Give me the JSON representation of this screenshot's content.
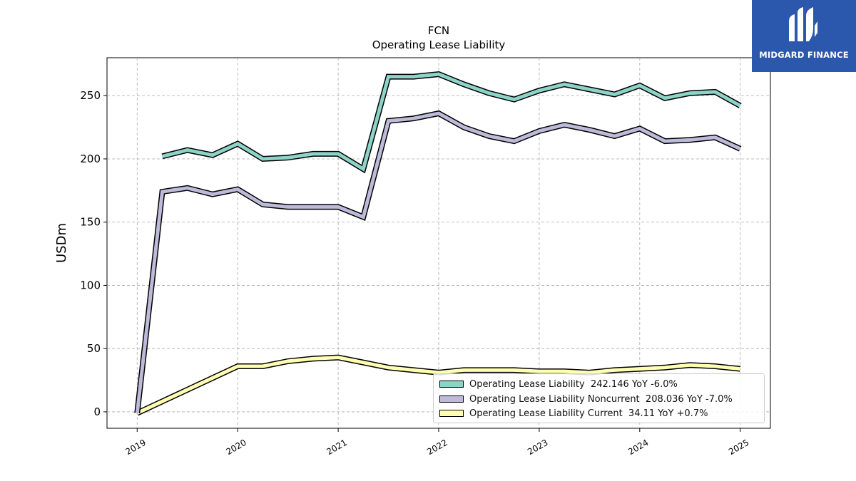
{
  "brand": {
    "name": "MIDGARD FINANCE",
    "color": "#2b58ad"
  },
  "chart_data": {
    "type": "line",
    "title": "FCN",
    "subtitle": "Operating Lease Liability",
    "ylabel": "USDm",
    "xlabel": "",
    "x_ticks": [
      "2019",
      "2020",
      "2021",
      "2022",
      "2023",
      "2024",
      "2025"
    ],
    "y_ticks": [
      0,
      50,
      100,
      150,
      200,
      250
    ],
    "ylim": [
      -13,
      280
    ],
    "xlim": [
      2018.7,
      2025.3
    ],
    "grid": true,
    "legend_position": "bottom-right",
    "series": [
      {
        "name": "Operating Lease Liability",
        "legend_label": "Operating Lease Liability  242.146 YoY -6.0%",
        "color": "#8dd3c7",
        "x": [
          2019.25,
          2019.5,
          2019.75,
          2020.0,
          2020.25,
          2020.5,
          2020.75,
          2021.0,
          2021.25,
          2021.5,
          2021.75,
          2022.0,
          2022.25,
          2022.5,
          2022.75,
          2023.0,
          2023.25,
          2023.5,
          2023.75,
          2024.0,
          2024.25,
          2024.5,
          2024.75,
          2025.0
        ],
        "y": [
          202,
          207,
          203,
          212,
          200,
          201,
          204,
          204,
          192,
          265,
          265,
          267,
          259,
          252,
          247,
          254,
          259,
          255,
          251,
          258,
          248,
          252,
          253,
          242
        ]
      },
      {
        "name": "Operating Lease Liability Noncurrent",
        "legend_label": "Operating Lease Liability Noncurrent  208.036 YoY -7.0%",
        "color": "#bebada",
        "x": [
          2019.0,
          2019.25,
          2019.5,
          2019.75,
          2020.0,
          2020.25,
          2020.5,
          2020.75,
          2021.0,
          2021.25,
          2021.5,
          2021.75,
          2022.0,
          2022.25,
          2022.5,
          2022.75,
          2023.0,
          2023.25,
          2023.5,
          2023.75,
          2024.0,
          2024.25,
          2024.5,
          2024.75,
          2025.0
        ],
        "y": [
          -1,
          174,
          177,
          172,
          176,
          164,
          162,
          162,
          162,
          154,
          230,
          232,
          236,
          225,
          218,
          214,
          222,
          227,
          223,
          218,
          224,
          214,
          215,
          217,
          208
        ]
      },
      {
        "name": "Operating Lease Liability Current",
        "legend_label": "Operating Lease Liability Current  34.11 YoY +0.7%",
        "color": "#ffffb3",
        "x": [
          2019.0,
          2020.0,
          2020.25,
          2020.5,
          2020.75,
          2021.0,
          2021.25,
          2021.5,
          2021.75,
          2022.0,
          2022.25,
          2022.5,
          2022.75,
          2023.0,
          2023.25,
          2023.5,
          2023.75,
          2024.0,
          2024.25,
          2024.5,
          2024.75,
          2025.0
        ],
        "y": [
          -1,
          36,
          36,
          40,
          42,
          43,
          39,
          35,
          33,
          31,
          33,
          33,
          33,
          32,
          32,
          31,
          33,
          34,
          35,
          37,
          36,
          34
        ]
      }
    ]
  }
}
